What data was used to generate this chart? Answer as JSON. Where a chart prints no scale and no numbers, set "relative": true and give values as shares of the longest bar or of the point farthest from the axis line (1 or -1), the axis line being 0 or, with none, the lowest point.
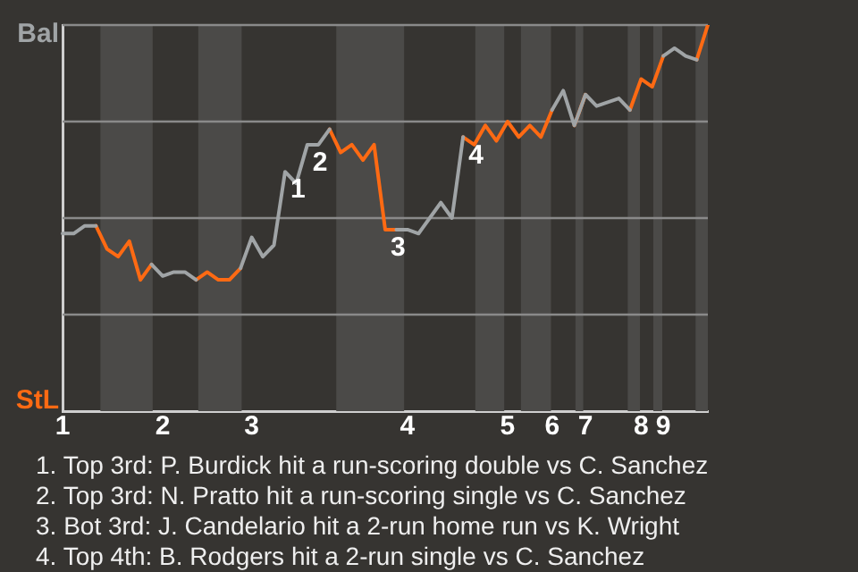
{
  "chart_data": {
    "type": "line",
    "relative": true,
    "categories": [
      "1",
      null,
      null,
      null,
      null,
      null,
      null,
      null,
      null,
      "2",
      null,
      null,
      null,
      null,
      null,
      null,
      null,
      "3",
      null,
      null,
      null,
      null,
      null,
      null,
      null,
      null,
      null,
      null,
      null,
      null,
      null,
      "4",
      null,
      null,
      null,
      null,
      null,
      null,
      null,
      null,
      "5",
      null,
      null,
      null,
      "6",
      null,
      null,
      "7",
      null,
      null,
      null,
      null,
      "8",
      null,
      "9",
      null,
      null,
      null,
      null
    ],
    "series": [
      {
        "color": "#a0a4a6",
        "values": [
          0.46,
          0.46,
          0.48,
          0.48,
          null,
          null,
          null,
          null,
          0.38,
          0.35,
          0.36,
          0.36,
          0.34,
          null,
          null,
          null,
          0.37,
          0.45,
          0.4,
          0.43,
          0.62,
          0.59,
          0.69,
          0.69,
          0.73,
          null,
          null,
          null,
          null,
          null,
          0.47,
          0.47,
          0.46,
          0.5,
          0.54,
          0.5,
          0.71,
          null,
          null,
          null,
          null,
          null,
          null,
          null,
          0.78,
          0.83,
          0.74,
          0.82,
          0.79,
          0.8,
          0.81,
          0.78,
          null,
          null,
          0.92,
          0.94,
          0.92,
          0.91,
          null
        ]
      },
      {
        "color": "#ff6a13",
        "values": [
          null,
          null,
          null,
          0.48,
          0.42,
          0.4,
          0.44,
          0.34,
          0.38,
          null,
          null,
          null,
          0.34,
          0.36,
          0.34,
          0.34,
          0.37,
          null,
          null,
          null,
          null,
          null,
          null,
          null,
          0.73,
          0.67,
          0.69,
          0.65,
          0.69,
          0.47,
          0.47,
          null,
          null,
          null,
          null,
          null,
          0.71,
          0.69,
          0.74,
          0.7,
          0.75,
          0.71,
          0.74,
          0.71,
          0.78,
          null,
          0.74,
          0.82,
          null,
          null,
          null,
          0.78,
          0.86,
          0.84,
          0.92,
          null,
          null,
          0.91,
          1
        ]
      }
    ],
    "marker": "none",
    "line_style": "solid",
    "ref_lines": [
      {
        "axis": "y",
        "value": 1,
        "color": "#8a8a8a"
      },
      {
        "axis": "y",
        "value": 0.75,
        "color": "#8a8a8a"
      },
      {
        "axis": "y",
        "value": 0.5,
        "color": "#8a8a8a"
      },
      {
        "axis": "y",
        "value": 0.25,
        "color": "#8a8a8a"
      }
    ],
    "annotations": [
      "Bal",
      "StL",
      {
        "text": "1",
        "y": 0.62
      },
      {
        "text": "2",
        "y": 0.69
      },
      {
        "text": "3",
        "y": 0.47
      },
      {
        "text": "4",
        "y": 0.71
      },
      "1. Top 3rd: P. Burdick hit a run-scoring double vs C. Sanchez",
      "2. Top 3rd: N. Pratto hit a run-scoring single vs C. Sanchez",
      "3. Bot 3rd: J. Candelario hit a 2-run home run vs K. Wright",
      "4. Top 4th: B. Rodgers hit a 2-run single vs C. Sanchez"
    ],
    "legend": false
  }
}
